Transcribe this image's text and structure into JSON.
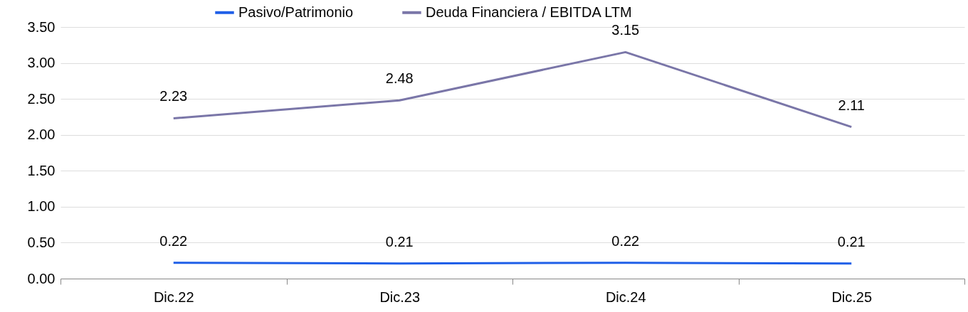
{
  "chart_data": {
    "type": "line",
    "categories": [
      "Dic.22",
      "Dic.23",
      "Dic.24",
      "Dic.25"
    ],
    "series": [
      {
        "name": "Pasivo/Patrimonio",
        "color": "#1f5fe8",
        "values": [
          0.22,
          0.21,
          0.22,
          0.21
        ]
      },
      {
        "name": "Deuda Financiera / EBITDA LTM",
        "color": "#7a76a8",
        "values": [
          2.23,
          2.48,
          3.15,
          2.11
        ]
      }
    ],
    "ylim": [
      0,
      3.5
    ],
    "yticks": [
      "0.00",
      "0.50",
      "1.00",
      "1.50",
      "2.00",
      "2.50",
      "3.00",
      "3.50"
    ],
    "grid": "y",
    "legend": "top",
    "data_labels": true,
    "marker": "none",
    "line_style": "solid"
  }
}
